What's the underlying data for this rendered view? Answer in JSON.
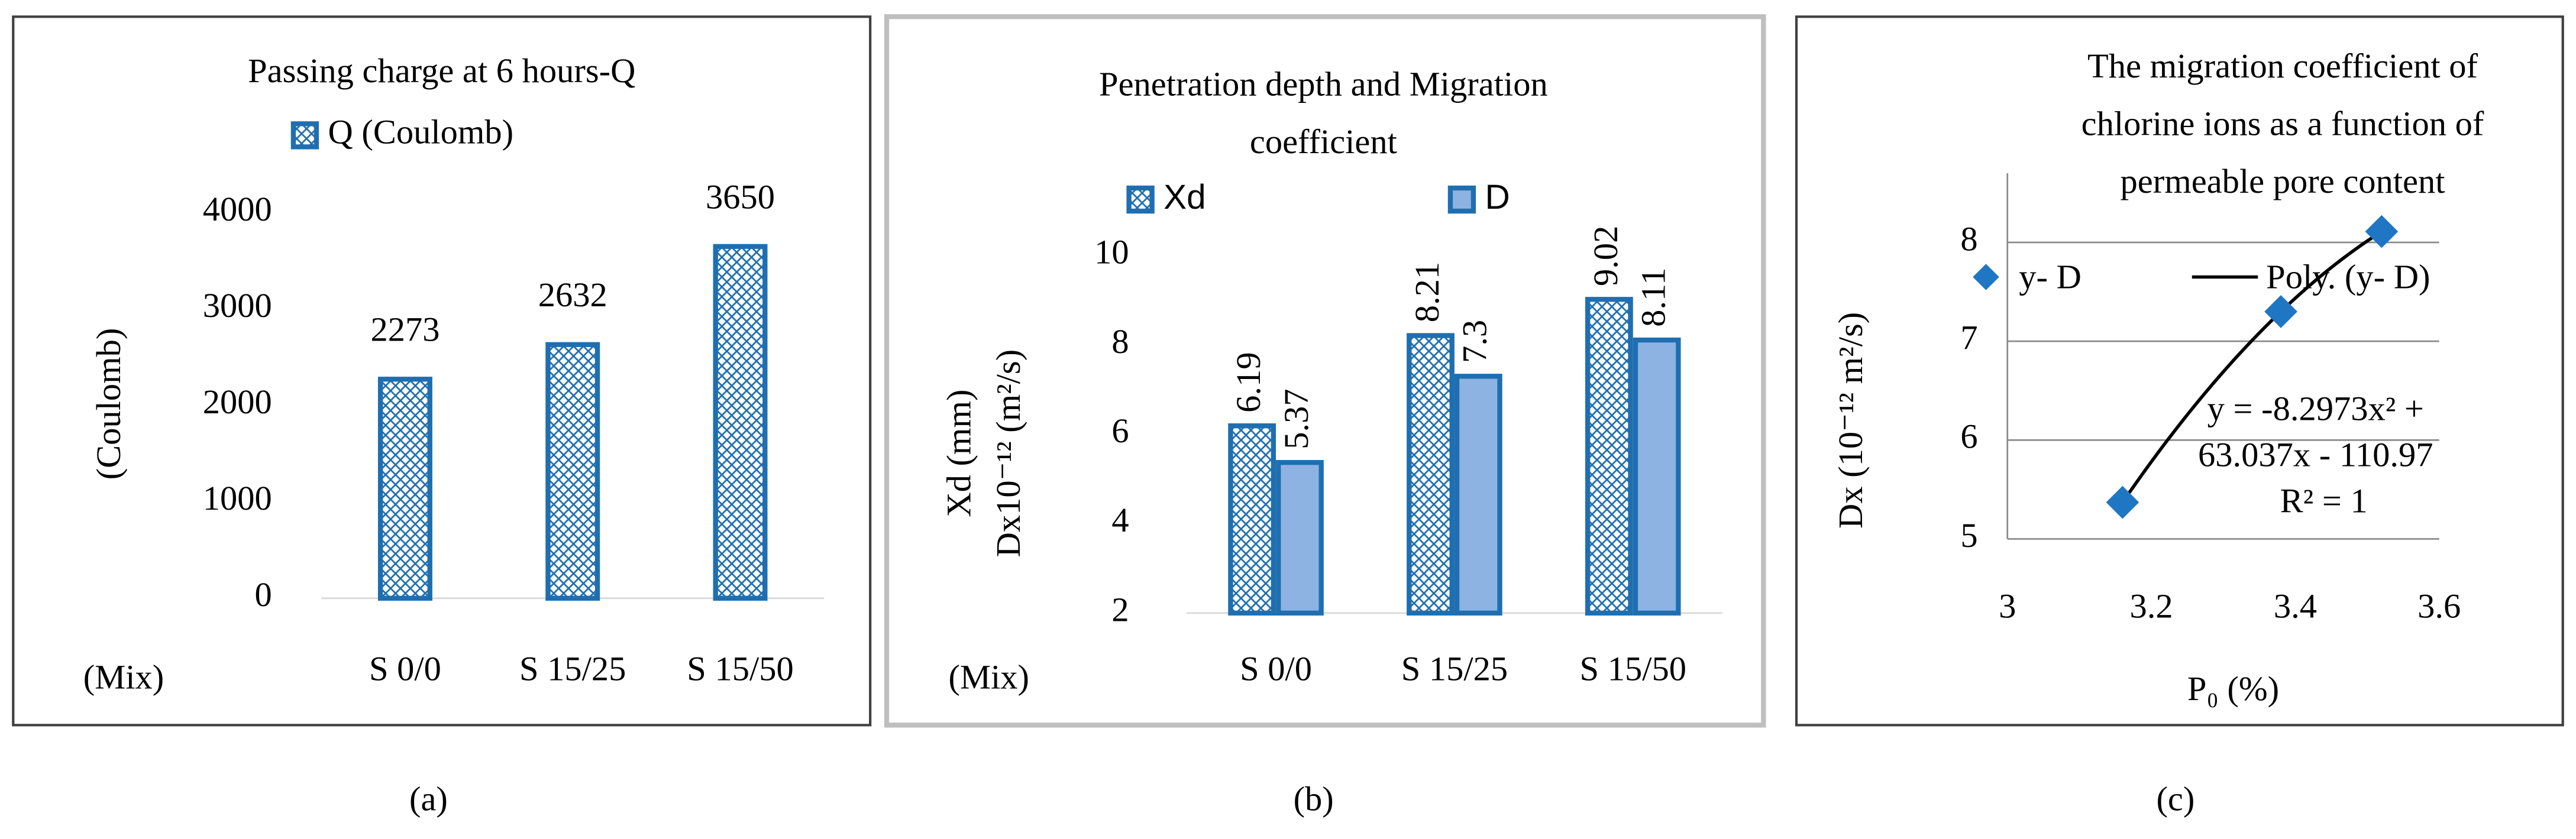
{
  "chart_data": [
    {
      "type": "bar",
      "title": "Passing charge at 6 hours-Q",
      "caption": "(a)",
      "categories": [
        "S 0/0",
        "S 15/25",
        "S 15/50"
      ],
      "series": [
        {
          "name": "Q (Coulomb)",
          "color": "#1f6fb0",
          "pattern": "crosshatch",
          "values": [
            2273,
            2632,
            3650
          ]
        }
      ],
      "ylabel": [
        "(Coulomb)"
      ],
      "xlabel": "(Mix)",
      "ylim": [
        0,
        4000
      ],
      "yticks": [
        0,
        1000,
        2000,
        3000,
        4000
      ],
      "grid": false
    },
    {
      "type": "bar",
      "title": [
        "Penetration depth and Migration",
        "coefficient"
      ],
      "caption": "(b)",
      "categories": [
        "S 0/0",
        "S 15/25",
        "S 15/50"
      ],
      "series": [
        {
          "name": "Xd",
          "color": "#1f6fb0",
          "pattern": "crosshatch",
          "values": [
            6.19,
            8.21,
            9.02
          ]
        },
        {
          "name": "D",
          "color": "#8db3e2",
          "values": [
            5.37,
            7.3,
            8.11
          ]
        }
      ],
      "ylabel": [
        "Xd (mm)",
        "Dx10⁻¹² (m²/s)"
      ],
      "xlabel": "(Mix)",
      "ylim": [
        2,
        10
      ],
      "yticks": [
        2,
        4,
        6,
        8,
        10
      ],
      "grid": false
    },
    {
      "type": "scatter",
      "title": [
        "The migration coefficient of",
        "chlorine ions as a function of",
        "permeable pore content"
      ],
      "caption": "(c)",
      "series": [
        {
          "name": "y- D",
          "color": "#1f77c4",
          "x": [
            3.16,
            3.38,
            3.52
          ],
          "values": [
            5.37,
            7.3,
            8.11
          ]
        }
      ],
      "trendline": {
        "name": "Poly. (y- D)",
        "color": "#000000",
        "equation": [
          "y = -8.2973x² +",
          "63.037x - 110.97"
        ],
        "r2": "R² = 1"
      },
      "xlabel": "P₀ (%)",
      "ylabel": [
        "Dx (10⁻¹² m²/s)"
      ],
      "xlim": [
        3,
        3.6
      ],
      "xticks": [
        3,
        3.2,
        3.4,
        3.6
      ],
      "ylim": [
        5,
        8.7
      ],
      "yticks": [
        5,
        6,
        7,
        8
      ],
      "grid": true
    }
  ]
}
